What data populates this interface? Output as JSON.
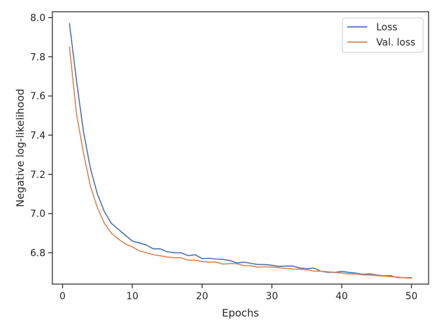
{
  "chart_data": {
    "type": "line",
    "xlabel": "Epochs",
    "ylabel": "Negative log-likelihood",
    "xlim": [
      -1.45,
      52.45
    ],
    "ylim": [
      6.64,
      8.03
    ],
    "xticks": [
      0,
      10,
      20,
      30,
      40,
      50
    ],
    "yticks": [
      6.8,
      7.0,
      7.2,
      7.4,
      7.6,
      7.8,
      8.0
    ],
    "ytick_labels": [
      "6.8",
      "7.0",
      "7.2",
      "7.4",
      "7.6",
      "7.8",
      "8.0"
    ],
    "grid": false,
    "legend_position": "top-right",
    "x": [
      1,
      2,
      3,
      4,
      5,
      6,
      7,
      8,
      9,
      10,
      11,
      12,
      13,
      14,
      15,
      16,
      17,
      18,
      19,
      20,
      21,
      22,
      23,
      24,
      25,
      26,
      27,
      28,
      29,
      30,
      31,
      32,
      33,
      34,
      35,
      36,
      37,
      38,
      39,
      40,
      41,
      42,
      43,
      44,
      45,
      46,
      47,
      48,
      49,
      50
    ],
    "series": [
      {
        "name": "Loss",
        "color": "#4c72b0",
        "values": [
          7.97,
          7.68,
          7.42,
          7.23,
          7.1,
          7.01,
          6.95,
          6.92,
          6.89,
          6.86,
          6.85,
          6.84,
          6.82,
          6.82,
          6.805,
          6.8,
          6.8,
          6.785,
          6.79,
          6.77,
          6.772,
          6.768,
          6.766,
          6.76,
          6.748,
          6.752,
          6.746,
          6.74,
          6.74,
          6.736,
          6.73,
          6.732,
          6.732,
          6.722,
          6.718,
          6.722,
          6.706,
          6.7,
          6.7,
          6.705,
          6.7,
          6.696,
          6.69,
          6.692,
          6.686,
          6.683,
          6.683,
          6.673,
          6.673,
          6.673
        ]
      },
      {
        "name": "Val. loss",
        "color": "#dd8452",
        "values": [
          7.85,
          7.51,
          7.31,
          7.14,
          7.03,
          6.95,
          6.9,
          6.87,
          6.845,
          6.83,
          6.81,
          6.8,
          6.79,
          6.785,
          6.778,
          6.775,
          6.774,
          6.762,
          6.762,
          6.756,
          6.752,
          6.752,
          6.742,
          6.745,
          6.744,
          6.734,
          6.734,
          6.726,
          6.728,
          6.727,
          6.724,
          6.72,
          6.717,
          6.716,
          6.714,
          6.706,
          6.706,
          6.703,
          6.7,
          6.696,
          6.692,
          6.692,
          6.687,
          6.687,
          6.683,
          6.681,
          6.678,
          6.676,
          6.672,
          6.67
        ]
      }
    ]
  }
}
